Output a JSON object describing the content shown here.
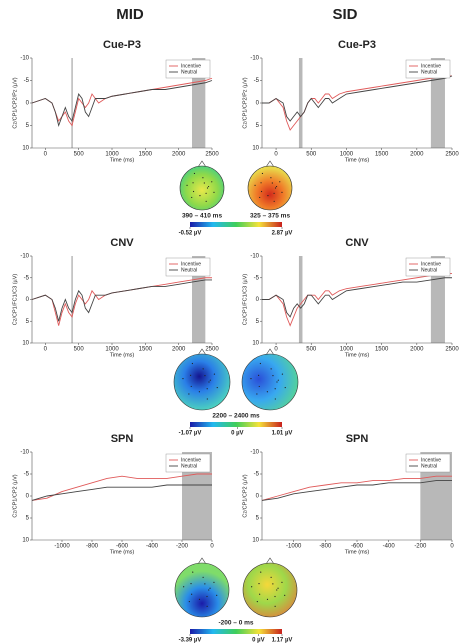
{
  "columns": [
    "MID",
    "SID"
  ],
  "chart_data": [
    {
      "type": "line",
      "title": "Cue-P3",
      "xlabel": "Time (ms)",
      "ylabel": "Cz/CP1/CP2/Pz (µV)",
      "x": [
        -200,
        -100,
        0,
        100,
        150,
        200,
        250,
        300,
        350,
        400,
        450,
        500,
        550,
        600,
        650,
        700,
        750,
        800,
        900,
        1000,
        1200,
        1400,
        1600,
        1800,
        2000,
        2200,
        2400,
        2500
      ],
      "series": [
        {
          "name": "Incentive",
          "color": "#e05a5a",
          "values": [
            0,
            -0.5,
            -1,
            0,
            2,
            4,
            3,
            2,
            4,
            5,
            2,
            -1,
            0,
            1,
            0,
            -2,
            -1,
            0,
            -1,
            -1.5,
            -2,
            -2.5,
            -3,
            -3.5,
            -4,
            -4.5,
            -5,
            -5.5
          ]
        },
        {
          "name": "Neutral",
          "color": "#444444",
          "values": [
            0,
            -0.5,
            -1,
            0,
            2,
            5,
            3,
            1,
            3,
            4,
            1,
            -2,
            -1,
            2,
            3,
            1,
            -1,
            -1,
            -1,
            -1.5,
            -2,
            -2.5,
            -3,
            -3,
            -3.5,
            -4,
            -4.5,
            -5
          ]
        }
      ],
      "xlim": [
        -200,
        2500
      ],
      "ylim": [
        10,
        -10
      ],
      "xticks": [
        0,
        500,
        1000,
        1500,
        2000,
        2500
      ],
      "yticks": [
        -10,
        -5,
        0,
        5,
        10
      ],
      "shaded": [
        [
          390,
          410
        ],
        [
          2200,
          2400
        ]
      ],
      "legend": "upper right"
    },
    {
      "type": "line",
      "title": "Cue-P3",
      "xlabel": "Time (ms)",
      "ylabel": "Cz/CP1/CP2/Pz (µV)",
      "x": [
        -200,
        -100,
        0,
        100,
        150,
        200,
        250,
        300,
        350,
        400,
        450,
        500,
        550,
        600,
        650,
        700,
        750,
        800,
        900,
        1000,
        1200,
        1400,
        1600,
        1800,
        2000,
        2200,
        2400,
        2500
      ],
      "series": [
        {
          "name": "Incentive",
          "color": "#e05a5a",
          "values": [
            0,
            0,
            -1,
            1,
            4,
            6,
            5,
            4,
            3,
            2,
            0,
            -1,
            -1,
            0,
            -1,
            -2,
            -2,
            -1,
            -2,
            -2.5,
            -3,
            -3.5,
            -4,
            -4.5,
            -5,
            -5.5,
            -6,
            -6
          ]
        },
        {
          "name": "Neutral",
          "color": "#444444",
          "values": [
            0,
            0,
            -1,
            0,
            3,
            4,
            3,
            2,
            3,
            2,
            0,
            -1,
            0,
            1,
            0,
            -1,
            -1,
            0,
            -1,
            -2,
            -2.5,
            -3,
            -3.5,
            -4,
            -4.5,
            -5,
            -5.5,
            -6
          ]
        }
      ],
      "xlim": [
        -200,
        2500
      ],
      "ylim": [
        10,
        -10
      ],
      "xticks": [
        0,
        500,
        1000,
        1500,
        2000,
        2500
      ],
      "yticks": [
        -10,
        -5,
        0,
        5,
        10
      ],
      "shaded": [
        [
          325,
          375
        ],
        [
          2200,
          2400
        ]
      ],
      "legend": "upper right"
    },
    {
      "type": "line",
      "title": "CNV",
      "xlabel": "Time (ms)",
      "ylabel": "Cz/CP1/FC1/C3 (µV)",
      "x": [
        -200,
        -100,
        0,
        100,
        150,
        200,
        250,
        300,
        350,
        400,
        450,
        500,
        550,
        600,
        650,
        700,
        750,
        800,
        900,
        1000,
        1200,
        1400,
        1600,
        1800,
        2000,
        2200,
        2400,
        2500
      ],
      "series": [
        {
          "name": "Incentive",
          "color": "#e05a5a",
          "values": [
            0,
            -0.5,
            -1,
            0,
            3,
            6,
            3,
            1,
            3,
            4,
            1,
            -1,
            0,
            1,
            0,
            -2,
            -1,
            0,
            -1,
            -1.5,
            -2,
            -2.5,
            -3,
            -3.5,
            -4,
            -4.5,
            -5,
            -5
          ]
        },
        {
          "name": "Neutral",
          "color": "#444444",
          "values": [
            0,
            -0.5,
            -1,
            0,
            2,
            5,
            2,
            0,
            2,
            3,
            0,
            -2,
            -1,
            2,
            3,
            1,
            -1,
            -1,
            -1,
            -1.5,
            -2,
            -2.5,
            -3,
            -3,
            -3.5,
            -4,
            -4.5,
            -4.5
          ]
        }
      ],
      "xlim": [
        -200,
        2500
      ],
      "ylim": [
        10,
        -10
      ],
      "xticks": [
        0,
        500,
        1000,
        1500,
        2000,
        2500
      ],
      "yticks": [
        -10,
        -5,
        0,
        5,
        10
      ],
      "shaded": [
        [
          390,
          410
        ],
        [
          2200,
          2400
        ]
      ],
      "legend": "upper right"
    },
    {
      "type": "line",
      "title": "CNV",
      "xlabel": "Time (ms)",
      "ylabel": "Cz/CP1/FC1/C3 (µV)",
      "x": [
        -200,
        -100,
        0,
        100,
        150,
        200,
        250,
        300,
        350,
        400,
        450,
        500,
        550,
        600,
        650,
        700,
        750,
        800,
        900,
        1000,
        1200,
        1400,
        1600,
        1800,
        2000,
        2200,
        2400,
        2500
      ],
      "series": [
        {
          "name": "Incentive",
          "color": "#e05a5a",
          "values": [
            0,
            0,
            -1,
            1,
            4,
            6,
            4,
            2,
            1,
            0,
            -1,
            -1,
            -1,
            0,
            -1,
            -2,
            -2,
            -1,
            -2,
            -2.5,
            -3,
            -3.5,
            -4,
            -4.5,
            -5,
            -5.5,
            -6,
            -6
          ]
        },
        {
          "name": "Neutral",
          "color": "#444444",
          "values": [
            0,
            0,
            -1,
            0,
            3,
            4,
            2,
            1,
            2,
            1,
            -1,
            -1,
            0,
            1,
            0,
            -1,
            -1,
            0,
            -1,
            -2,
            -2.5,
            -3,
            -3.5,
            -4,
            -4,
            -4.5,
            -5,
            -5
          ]
        }
      ],
      "xlim": [
        -200,
        2500
      ],
      "ylim": [
        10,
        -10
      ],
      "xticks": [
        0,
        500,
        1000,
        1500,
        2000,
        2500
      ],
      "yticks": [
        -10,
        -5,
        0,
        5,
        10
      ],
      "shaded": [
        [
          325,
          375
        ],
        [
          2200,
          2400
        ]
      ],
      "legend": "upper right"
    },
    {
      "type": "line",
      "title": "SPN",
      "xlabel": "Time (ms)",
      "ylabel": "Cz/CP1/CP2 (µV)",
      "x": [
        -1200,
        -1100,
        -1000,
        -900,
        -800,
        -700,
        -600,
        -500,
        -400,
        -300,
        -200,
        -100,
        0
      ],
      "series": [
        {
          "name": "Incentive",
          "color": "#e05a5a",
          "values": [
            1,
            0.5,
            -1,
            -2,
            -3,
            -4,
            -4.5,
            -4,
            -4,
            -4,
            -4.5,
            -5,
            -5
          ]
        },
        {
          "name": "Neutral",
          "color": "#444444",
          "values": [
            1,
            0,
            -0.5,
            -1,
            -1.5,
            -2,
            -2,
            -2,
            -2,
            -2.5,
            -2.5,
            -2.5,
            -2.5
          ]
        }
      ],
      "xlim": [
        -1200,
        0
      ],
      "ylim": [
        10,
        -10
      ],
      "xticks": [
        -1000,
        -800,
        -600,
        -400,
        -200,
        0
      ],
      "yticks": [
        -10,
        -5,
        0,
        5,
        10
      ],
      "shaded": [
        [
          -200,
          0
        ]
      ],
      "legend": "upper right"
    },
    {
      "type": "line",
      "title": "SPN",
      "xlabel": "Time (ms)",
      "ylabel": "Cz/CP1/CP2 (µV)",
      "x": [
        -1200,
        -1100,
        -1000,
        -900,
        -800,
        -700,
        -600,
        -500,
        -400,
        -300,
        -200,
        -100,
        0
      ],
      "series": [
        {
          "name": "Incentive",
          "color": "#e05a5a",
          "values": [
            1,
            0,
            -1,
            -2,
            -2.5,
            -3,
            -3,
            -3.5,
            -3.5,
            -4,
            -4,
            -4.5,
            -4.5
          ]
        },
        {
          "name": "Neutral",
          "color": "#444444",
          "values": [
            1,
            0.5,
            -0.5,
            -1,
            -1.5,
            -2,
            -2.5,
            -2.5,
            -3,
            -3,
            -3,
            -3.5,
            -3.5
          ]
        }
      ],
      "xlim": [
        -1200,
        0
      ],
      "ylim": [
        10,
        -10
      ],
      "xticks": [
        -1000,
        -800,
        -600,
        -400,
        -200,
        0
      ],
      "yticks": [
        -10,
        -5,
        0,
        5,
        10
      ],
      "shaded": [
        [
          -200,
          0
        ]
      ],
      "legend": "upper right"
    }
  ],
  "topomaps": [
    {
      "windows": [
        "390 – 410 ms",
        "325 – 375 ms"
      ],
      "clim": [
        -0.52,
        2.87
      ],
      "cticks": [
        {
          "value": -0.52,
          "label": "-0.52 µV"
        },
        {
          "value": 2.87,
          "label": "2.87 µV"
        }
      ]
    },
    {
      "windows": [
        "2200 – 2400 ms"
      ],
      "clim": [
        -1.07,
        1.01
      ],
      "cticks": [
        {
          "value": -1.07,
          "label": "-1.07 µV"
        },
        {
          "value": 0,
          "label": "0 µV"
        },
        {
          "value": 1.01,
          "label": "1.01 µV"
        }
      ]
    },
    {
      "windows": [
        "-200 – 0 ms"
      ],
      "clim": [
        -3.39,
        1.17
      ],
      "cticks": [
        {
          "value": -3.39,
          "label": "-3.39 µV"
        },
        {
          "value": 0,
          "label": "0 µV"
        },
        {
          "value": 1.17,
          "label": "1.17 µV"
        }
      ]
    }
  ]
}
